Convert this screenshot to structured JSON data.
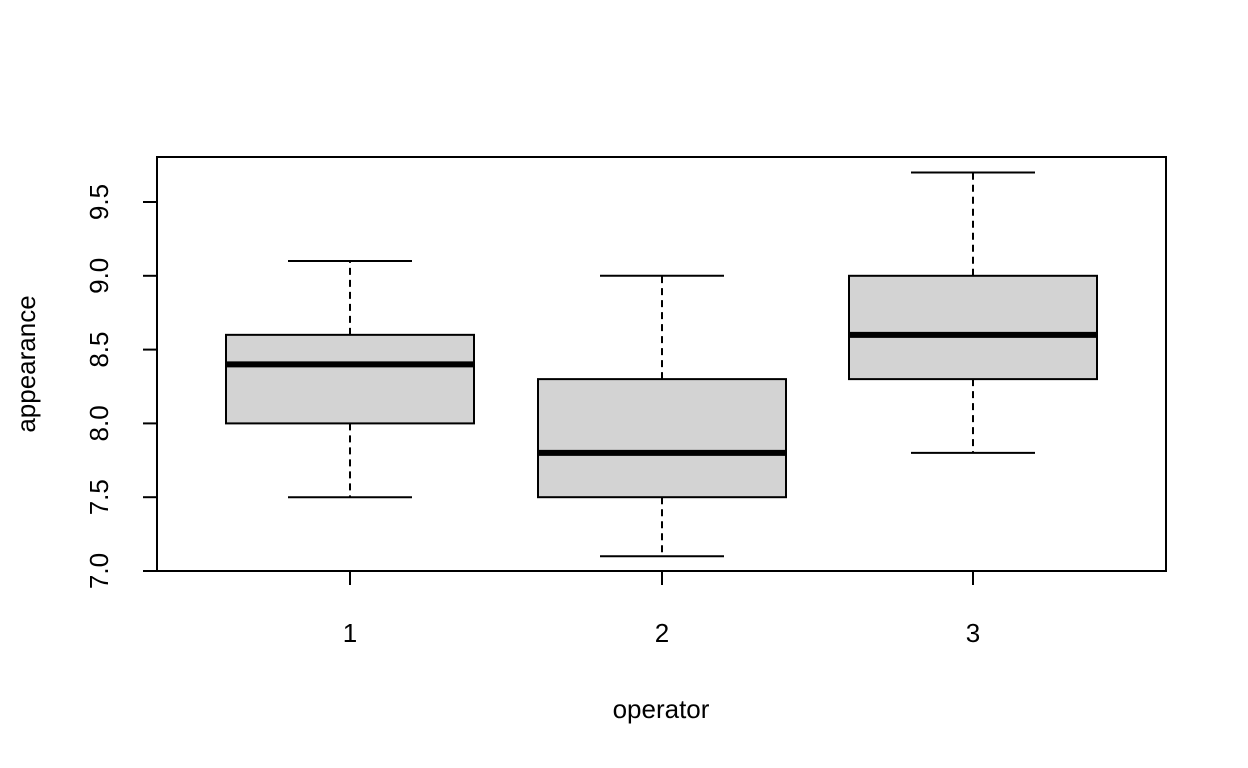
{
  "chart_data": {
    "type": "boxplot",
    "title": "",
    "xlabel": "operator",
    "ylabel": "appearance",
    "categories": [
      "1",
      "2",
      "3"
    ],
    "boxes": [
      {
        "category": "1",
        "whisker_low": 7.5,
        "q1": 8.0,
        "median": 8.4,
        "q3": 8.6,
        "whisker_high": 9.1
      },
      {
        "category": "2",
        "whisker_low": 7.1,
        "q1": 7.5,
        "median": 7.8,
        "q3": 8.3,
        "whisker_high": 9.0
      },
      {
        "category": "3",
        "whisker_low": 7.8,
        "q1": 8.3,
        "median": 8.6,
        "q3": 9.0,
        "whisker_high": 9.7
      }
    ],
    "yticks": [
      7.0,
      7.5,
      8.0,
      8.5,
      9.0,
      9.5
    ],
    "ytick_labels": [
      "7.0",
      "7.5",
      "8.0",
      "8.5",
      "9.0",
      "9.5"
    ],
    "ylim": [
      7.0,
      9.8
    ],
    "grid": false,
    "legend": "none",
    "colors": {
      "box_fill": "#d3d3d3",
      "line": "#000000",
      "background": "#ffffff"
    }
  }
}
